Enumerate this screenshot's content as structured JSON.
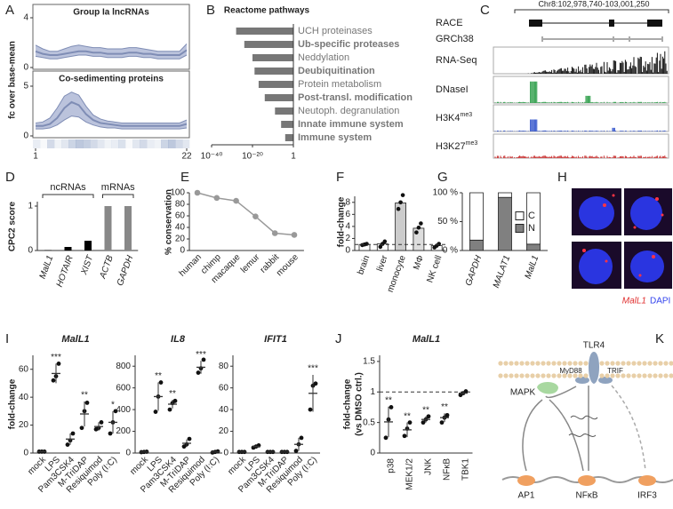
{
  "chart_data": [
    {
      "panel": "A",
      "type": "area",
      "title": "Group Ia lncRNAs",
      "ylabel": "fc over base-mean",
      "x": [
        1,
        2,
        3,
        4,
        5,
        6,
        7,
        8,
        9,
        10,
        11,
        12,
        13,
        14,
        15,
        16,
        17,
        18,
        19,
        20,
        21,
        22
      ],
      "values": [
        1.3,
        1.1,
        1.0,
        1.0,
        1.1,
        1.2,
        1.3,
        1.3,
        1.2,
        1.2,
        1.1,
        1.1,
        1.1,
        1.2,
        1.2,
        1.1,
        1.1,
        1.0,
        1.0,
        1.0,
        1.0,
        1.4
      ],
      "upper": [
        1.8,
        1.5,
        1.3,
        1.3,
        1.5,
        1.7,
        1.8,
        1.7,
        1.6,
        1.6,
        1.5,
        1.5,
        1.5,
        1.6,
        1.6,
        1.5,
        1.4,
        1.3,
        1.3,
        1.3,
        1.3,
        1.9
      ],
      "lower": [
        0.9,
        0.8,
        0.7,
        0.7,
        0.8,
        0.9,
        1.0,
        1.0,
        0.9,
        0.9,
        0.8,
        0.8,
        0.8,
        0.9,
        0.9,
        0.8,
        0.8,
        0.7,
        0.7,
        0.7,
        0.7,
        1.0
      ],
      "color": "#7f8db5",
      "band_color": "#b4bdd8",
      "xlim": [
        1,
        22
      ],
      "ylim": [
        0,
        4
      ],
      "yticks": [
        0,
        4
      ]
    },
    {
      "type": "area",
      "title": "Co-sedimenting proteins",
      "x": [
        1,
        2,
        3,
        4,
        5,
        6,
        7,
        8,
        9,
        10,
        11,
        12,
        13,
        14,
        15,
        16,
        17,
        18,
        19,
        20,
        21,
        22
      ],
      "values": [
        1.0,
        1.0,
        1.2,
        1.8,
        2.8,
        3.4,
        3.1,
        2.2,
        1.6,
        1.3,
        1.2,
        1.1,
        1.0,
        1.0,
        1.0,
        1.0,
        1.0,
        1.0,
        1.0,
        1.0,
        1.0,
        1.2
      ],
      "upper": [
        1.3,
        1.4,
        1.8,
        2.8,
        4.0,
        4.4,
        4.1,
        3.0,
        2.1,
        1.7,
        1.5,
        1.4,
        1.3,
        1.3,
        1.3,
        1.3,
        1.3,
        1.3,
        1.3,
        1.3,
        1.3,
        1.6
      ],
      "lower": [
        0.7,
        0.7,
        0.8,
        1.1,
        1.6,
        2.0,
        1.9,
        1.4,
        1.1,
        0.9,
        0.8,
        0.8,
        0.7,
        0.7,
        0.7,
        0.7,
        0.7,
        0.7,
        0.7,
        0.7,
        0.7,
        0.8
      ],
      "color": "#7f8db5",
      "band_color": "#b4bdd8",
      "xlim": [
        1,
        22
      ],
      "ylim": [
        0,
        5
      ],
      "yticks": [
        0,
        5
      ],
      "xticks": [
        1,
        22
      ]
    },
    {
      "panel": "B",
      "type": "bar",
      "orientation": "horizontal",
      "title": "Reactome pathways",
      "categories": [
        "UCH proteinases",
        "Ub-specific proteases",
        "Neddylation",
        "Deubiquitination",
        "Protein metabolism",
        "Post-transl. modification",
        "Neutoph. degranulation",
        "Innate immune system",
        "Immune system"
      ],
      "values": [
        1e-28,
        1e-24,
        1e-20,
        1e-19,
        1e-17,
        1e-14,
        1e-09,
        1e-06,
        0.0001
      ],
      "bold": [
        false,
        true,
        false,
        true,
        false,
        true,
        false,
        true,
        true
      ],
      "color": "#777777",
      "log_x": true,
      "xlim": [
        1e-40,
        1
      ],
      "xticks": [
        {
          "value": 1e-40,
          "label": "10⁻⁴⁰"
        },
        {
          "value": 1e-20,
          "label": "10⁻²⁰"
        },
        1
      ]
    },
    {
      "panel": "D",
      "type": "bar",
      "ylabel": "CPC2 score",
      "categories": [
        "MalL1",
        "HOTAIR",
        "XIST",
        "ACTB",
        "GAPDH"
      ],
      "values": [
        0.01,
        0.08,
        0.22,
        1,
        1
      ],
      "colors": [
        "#000000",
        "#000000",
        "#000000",
        "#888888",
        "#888888"
      ],
      "italic": true,
      "groups": [
        {
          "label": "ncRNAs",
          "size": 3
        },
        {
          "label": "mRNAs",
          "size": 2
        }
      ],
      "ylim": [
        0,
        1.1
      ],
      "yticks": [
        0,
        1
      ]
    },
    {
      "panel": "E",
      "type": "line",
      "ylabel": "% conservation",
      "categories": [
        "human",
        "chimp",
        "macaque",
        "lemur",
        "rabbit",
        "mouse"
      ],
      "values": [
        100,
        91,
        86,
        59,
        30,
        27
      ],
      "color": "#999999",
      "ylim": [
        0,
        100
      ],
      "yticks": [
        0,
        20,
        40,
        60,
        80,
        100
      ]
    },
    {
      "panel": "F",
      "type": "bar",
      "ylabel": "fold-change",
      "categories": [
        "brain",
        "liver",
        "monocyte",
        "MΦ",
        "NK cell"
      ],
      "values": [
        1,
        1.1,
        7.9,
        3.7,
        0.8
      ],
      "points": [
        [
          0.9,
          1.0,
          1.1
        ],
        [
          0.6,
          1.1,
          1.5
        ],
        [
          6.9,
          8.0,
          9.2
        ],
        [
          3.0,
          3.8,
          4.5
        ],
        [
          0.5,
          0.8,
          1.1
        ]
      ],
      "colors": [
        "#ffffff",
        "#ffffff",
        "#cccccc",
        "#dddddd",
        "#ffffff"
      ],
      "reference_line": 1,
      "ylim": [
        0,
        9
      ],
      "yticks": [
        0,
        2,
        4,
        6,
        8
      ]
    },
    {
      "panel": "G",
      "type": "stacked_bar",
      "categories": [
        "GAPDH",
        "MALAT1",
        "MalL1"
      ],
      "italic": true,
      "series": [
        {
          "name": "N",
          "color": "#808080",
          "values": [
            18,
            92,
            11
          ]
        },
        {
          "name": "C",
          "color": "#ffffff",
          "values": [
            82,
            8,
            89
          ]
        }
      ],
      "ylim": [
        0,
        100
      ],
      "yticks": [
        {
          "value": 0,
          "label": "0 %"
        },
        {
          "value": 50,
          "label": "50 %"
        },
        {
          "value": 100,
          "label": "100 %"
        }
      ]
    },
    {
      "panel": "I",
      "type": "dot",
      "title": "MalL1",
      "ylabel": "fold-change",
      "categories": [
        "mock",
        "LPS",
        "Pam3CSK4",
        "M-TriDAP",
        "Resiquimod",
        "Poly (I:C)"
      ],
      "values": [
        1,
        57,
        10,
        28,
        19,
        22
      ],
      "errors": [
        0.5,
        7,
        4,
        9,
        3,
        8
      ],
      "points": [
        [
          1,
          1,
          1
        ],
        [
          52,
          55,
          64
        ],
        [
          6,
          9,
          14
        ],
        [
          18,
          30,
          36
        ],
        [
          17,
          18,
          22
        ],
        [
          14,
          22,
          30
        ]
      ],
      "annotations": [
        null,
        "***",
        null,
        "**",
        null,
        "*"
      ],
      "ylim": [
        0,
        70
      ],
      "yticks": [
        0,
        20,
        40,
        60
      ]
    },
    {
      "type": "dot",
      "title": "IL8",
      "categories": [
        "mock",
        "LPS",
        "Pam3CSK4",
        "M-TriDAP",
        "Resiquimod",
        "Poly (I:C)"
      ],
      "values": [
        10,
        520,
        450,
        90,
        790,
        10
      ],
      "errors": [
        2,
        130,
        40,
        35,
        60,
        5
      ],
      "points": [
        [
          8,
          10,
          12
        ],
        [
          380,
          520,
          650
        ],
        [
          400,
          460,
          480
        ],
        [
          60,
          80,
          130
        ],
        [
          740,
          780,
          860
        ],
        [
          5,
          10,
          15
        ]
      ],
      "annotations": [
        null,
        "**",
        "**",
        null,
        "***",
        null
      ],
      "ylim": [
        0,
        900
      ],
      "yticks": [
        0,
        200,
        400,
        600,
        800
      ]
    },
    {
      "type": "dot",
      "title": "IFIT1",
      "categories": [
        "mock",
        "LPS",
        "Pam3CSK4",
        "M-TriDAP",
        "Resiquimod",
        "Poly (I:C)"
      ],
      "values": [
        1,
        6,
        1,
        1,
        8,
        55
      ],
      "errors": [
        0.5,
        1,
        0.5,
        0.5,
        6,
        17
      ],
      "points": [
        [
          1,
          1,
          1
        ],
        [
          5,
          6,
          7
        ],
        [
          1,
          1,
          1
        ],
        [
          1,
          1,
          1
        ],
        [
          2,
          8,
          14
        ],
        [
          40,
          62,
          64
        ]
      ],
      "annotations": [
        null,
        null,
        null,
        null,
        null,
        "***"
      ],
      "ylim": [
        0,
        90
      ],
      "yticks": [
        0,
        20,
        40,
        60,
        80
      ]
    },
    {
      "panel": "J",
      "type": "dot",
      "title": "MalL1",
      "ylabel": [
        "fold-change",
        "(vs DMSO ctrl.)"
      ],
      "categories": [
        "p38",
        "MEK1/2",
        "JNK",
        "NFκB",
        "TBK1"
      ],
      "values": [
        0.51,
        0.38,
        0.55,
        0.58,
        0.98
      ],
      "errors": [
        0.25,
        0.12,
        0.05,
        0.07,
        0.03
      ],
      "points": [
        [
          0.25,
          0.55,
          0.75
        ],
        [
          0.28,
          0.4,
          0.5
        ],
        [
          0.5,
          0.55,
          0.6
        ],
        [
          0.5,
          0.58,
          0.62
        ],
        [
          0.95,
          0.98,
          1.01
        ]
      ],
      "annotations": [
        "**",
        "**",
        "**",
        "**",
        null
      ],
      "reference_line": 1,
      "ylim": [
        0,
        1.6
      ],
      "yticks": [
        0,
        0.5,
        1,
        1.5
      ]
    }
  ],
  "genome_tracks": {
    "panel": "C",
    "coordinates": "Chr8:102,978,740-103,001,250",
    "tracks": [
      {
        "name": "RACE"
      },
      {
        "name": "GRCh38"
      },
      {
        "name": "RNA-Seq",
        "color": "#111111"
      },
      {
        "name": "DNaseI",
        "color": "#2e9e4a"
      },
      {
        "name": "H3K4",
        "superscript": "me3",
        "color": "#3355cc"
      },
      {
        "name": "H3K27",
        "superscript": "me3",
        "color": "#cc3333"
      }
    ]
  },
  "microscopy": {
    "panel": "H",
    "legend": [
      {
        "label": "MalL1",
        "color": "#e03030"
      },
      {
        "label": "DAPI",
        "color": "#3344ee"
      }
    ]
  },
  "pathway_diagram": {
    "panel": "K",
    "receptor": "TLR4",
    "adaptors": [
      "MyD88",
      "TRIF"
    ],
    "kinase": "MAPK",
    "transcription_factors": [
      "AP1",
      "NFκB",
      "IRF3"
    ]
  }
}
